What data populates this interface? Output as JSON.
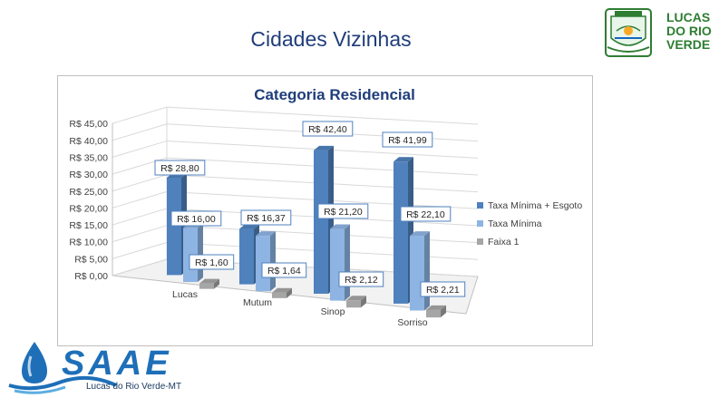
{
  "slide": {
    "title": "Cidades Vizinhas"
  },
  "brand": {
    "line1": "LUCAS",
    "line2": "DO RIO",
    "line3": "VERDE"
  },
  "footer": {
    "subtitle": "Lucas do Rio Verde-MT",
    "logo_text": "SAAE"
  },
  "colors": {
    "series1": "#4F81BD",
    "series2": "#8EB4E3",
    "series3": "#A6A6A6",
    "title": "#1F3D7A",
    "brand_green": "#2E7D32"
  },
  "chart_data": {
    "type": "bar",
    "title": "Categoria Residencial",
    "categories": [
      "Lucas",
      "Mutum",
      "Sinop",
      "Sorriso"
    ],
    "series": [
      {
        "name": "Taxa Mínima + Esgoto",
        "values": [
          28.8,
          16.37,
          42.4,
          41.99
        ],
        "labels": [
          "R$ 28,80",
          "R$ 16,37",
          "R$ 42,40",
          "R$ 41,99"
        ]
      },
      {
        "name": "Taxa Mínima",
        "values": [
          16.0,
          16.37,
          21.2,
          22.1
        ],
        "labels": [
          "R$ 16,00",
          "",
          "R$ 21,20",
          "R$ 22,10"
        ]
      },
      {
        "name": "Faixa 1",
        "values": [
          1.6,
          1.64,
          2.12,
          2.21
        ],
        "labels": [
          "R$ 1,60",
          "R$ 1,64",
          "R$ 2,12",
          "R$ 2,21"
        ]
      }
    ],
    "ylim": [
      0,
      45
    ],
    "yticks": [
      "R$ 0,00",
      "R$ 5,00",
      "R$ 10,00",
      "R$ 15,00",
      "R$ 20,00",
      "R$ 25,00",
      "R$ 30,00",
      "R$ 35,00",
      "R$ 40,00",
      "R$ 45,00"
    ],
    "legend_position": "right",
    "grid": true
  }
}
